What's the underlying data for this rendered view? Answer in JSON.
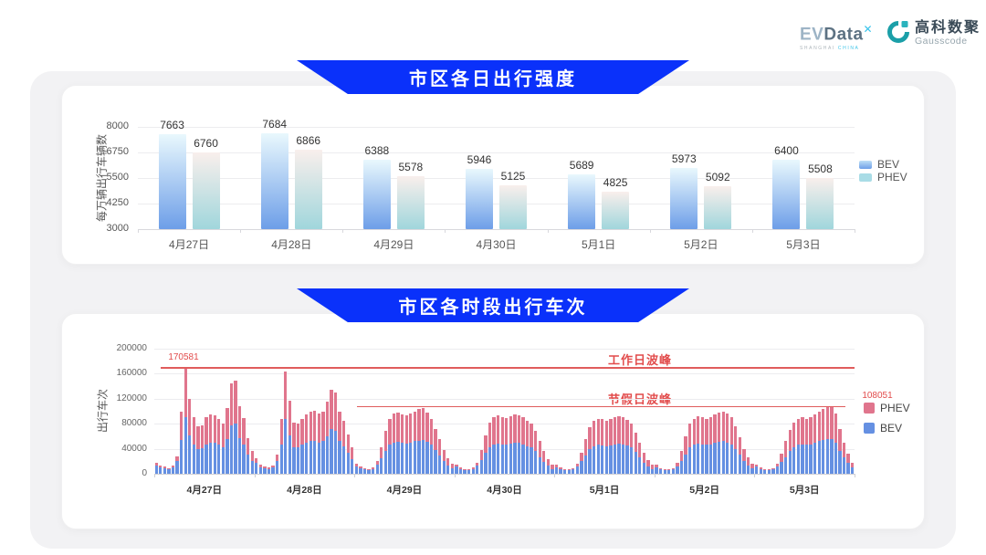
{
  "header": {
    "evdata": {
      "ev": "EV",
      "data": "Data",
      "sup": "✕",
      "tagline_left": "SHANGHAI",
      "tagline_right": "CHINA"
    },
    "gausscode": {
      "cn": "高科数聚",
      "en": "Gausscode"
    }
  },
  "colors": {
    "banner_blue": "#0a31fa",
    "annotation_red": "#e24c4c",
    "peak_line_red": "#e05c5c"
  },
  "chart_data": [
    {
      "type": "bar",
      "title": "市区各日出行强度",
      "ylabel": "每万辆出行车辆数",
      "xlabel": "",
      "categories": [
        "4月27日",
        "4月28日",
        "4月29日",
        "4月30日",
        "5月1日",
        "5月2日",
        "5月3日"
      ],
      "series": [
        {
          "name": "BEV",
          "values": [
            7663,
            7684,
            6388,
            5946,
            5689,
            5973,
            6400
          ],
          "color_top": "#e9f8fd",
          "color_bottom": "#6d9ee8"
        },
        {
          "name": "PHEV",
          "values": [
            6760,
            6866,
            5578,
            5125,
            4825,
            5092,
            5508
          ],
          "color_top": "#f9efec",
          "color_bottom": "#a0d6dc"
        }
      ],
      "ylim": [
        3000,
        8000
      ],
      "yticks": [
        3000,
        4250,
        5500,
        6750,
        8000
      ],
      "grid": true,
      "legend": [
        "BEV",
        "PHEV"
      ],
      "legend_colors": {
        "BEV": "#86b6ee",
        "PHEV": "#a9dce6"
      },
      "legend_position": "right"
    },
    {
      "type": "bar",
      "stacked": true,
      "title": "市区各时段出行车次",
      "ylabel": "出行车次",
      "xlabel": "",
      "categories": [
        "4月27日",
        "4月28日",
        "4月29日",
        "4月30日",
        "5月1日",
        "5月2日",
        "5月3日"
      ],
      "bars_per_category": 24,
      "ylim": [
        0,
        200000
      ],
      "yticks": [
        0,
        40000,
        80000,
        120000,
        160000,
        200000
      ],
      "grid": true,
      "legend": [
        "PHEV",
        "BEV"
      ],
      "series_colors": {
        "BEV": "#6590e2",
        "PHEV": "#e0758d"
      },
      "legend_position": "right",
      "annotations": {
        "workday_peak": {
          "text": "工作日波峰",
          "value": 170581,
          "value_label": "170581"
        },
        "holiday_peak": {
          "text": "节假日波峰",
          "value": 108051,
          "value_label": "108051"
        }
      },
      "days": [
        {
          "label": "4月27日",
          "BEV": [
            13500,
            10000,
            8500,
            7000,
            10000,
            20000,
            54000,
            90581,
            62000,
            47000,
            40000,
            41000,
            47000,
            50000,
            49000,
            46000,
            43000,
            55000,
            78000,
            80000,
            57500,
            46000,
            30000,
            20000
          ],
          "PHEV": [
            4500,
            3000,
            2500,
            2000,
            3000,
            8000,
            46000,
            80000,
            57000,
            43000,
            36000,
            37000,
            43000,
            45000,
            44000,
            41000,
            38000,
            50000,
            67000,
            68500,
            51000,
            43000,
            27000,
            17000
          ]
        },
        {
          "label": "4月28日",
          "BEV": [
            18000,
            10500,
            8500,
            7500,
            10000,
            21000,
            47000,
            88000,
            61500,
            43000,
            42000,
            46000,
            50000,
            52000,
            53000,
            50000,
            52000,
            60000,
            71000,
            69000,
            52000,
            44000,
            33000,
            23000
          ],
          "PHEV": [
            7000,
            3500,
            2500,
            2500,
            3000,
            9000,
            41000,
            76000,
            56000,
            39000,
            39000,
            42000,
            45000,
            48000,
            48000,
            46000,
            48000,
            55000,
            63000,
            61000,
            48000,
            41000,
            30000,
            20000
          ]
        },
        {
          "label": "4月29日",
          "BEV": [
            12000,
            8500,
            7000,
            6000,
            7500,
            14000,
            25000,
            36000,
            46000,
            50000,
            51000,
            49000,
            48000,
            50000,
            52000,
            53000,
            54000,
            51000,
            46000,
            38000,
            29000,
            20000,
            13000,
            8500
          ],
          "PHEV": [
            4000,
            2500,
            2000,
            2000,
            2500,
            6000,
            17000,
            32000,
            42000,
            46000,
            47000,
            46000,
            45000,
            47000,
            48000,
            50000,
            51000,
            47000,
            42000,
            34000,
            26000,
            18000,
            12000,
            7500
          ]
        },
        {
          "label": "4月30日",
          "BEV": [
            11000,
            7500,
            6000,
            6000,
            7500,
            13000,
            22000,
            33000,
            43000,
            47000,
            48000,
            47000,
            46000,
            48000,
            49000,
            49000,
            47000,
            44000,
            42000,
            36000,
            27000,
            19000,
            12500,
            8000
          ],
          "PHEV": [
            4000,
            2500,
            2000,
            2000,
            2500,
            5000,
            16000,
            29000,
            39000,
            43000,
            45000,
            44000,
            43000,
            44000,
            46000,
            45000,
            43000,
            41000,
            38000,
            32000,
            25000,
            17000,
            11500,
            7000
          ]
        },
        {
          "label": "5月1日",
          "BEV": [
            10500,
            7500,
            6000,
            5300,
            6800,
            11500,
            20000,
            29000,
            39000,
            44000,
            46000,
            45000,
            44000,
            45000,
            47000,
            48000,
            47000,
            45000,
            42000,
            35000,
            26000,
            18000,
            11500,
            7500
          ],
          "PHEV": [
            3500,
            2500,
            2000,
            1700,
            2200,
            4500,
            14000,
            27000,
            36000,
            40000,
            42000,
            42000,
            41000,
            42000,
            43000,
            44000,
            43000,
            41000,
            38000,
            31000,
            24000,
            16000,
            10500,
            6500
          ]
        },
        {
          "label": "5月2日",
          "BEV": [
            10500,
            7000,
            6000,
            5300,
            6800,
            12000,
            21000,
            31000,
            42000,
            46000,
            48000,
            47000,
            46000,
            47000,
            49000,
            51000,
            52000,
            50000,
            47000,
            40000,
            30000,
            21000,
            13500,
            8500
          ],
          "PHEV": [
            3500,
            2000,
            2000,
            1700,
            2200,
            5000,
            15000,
            29000,
            38000,
            42000,
            44000,
            43000,
            42000,
            44000,
            46000,
            47000,
            48000,
            47000,
            43000,
            36000,
            28000,
            19000,
            12500,
            7500
          ]
        },
        {
          "label": "5月3日",
          "BEV": [
            11000,
            7500,
            6000,
            5300,
            6800,
            11500,
            19000,
            27000,
            36000,
            43000,
            46000,
            47000,
            46000,
            47000,
            49000,
            52000,
            54000,
            55000,
            56051,
            50000,
            37000,
            26000,
            17000,
            9500
          ],
          "PHEV": [
            4000,
            2500,
            2000,
            1700,
            2200,
            4500,
            13000,
            25000,
            34000,
            39000,
            42000,
            43000,
            42000,
            43000,
            46000,
            48000,
            50000,
            51000,
            52000,
            46000,
            35000,
            24000,
            15000,
            8500
          ]
        }
      ]
    }
  ]
}
